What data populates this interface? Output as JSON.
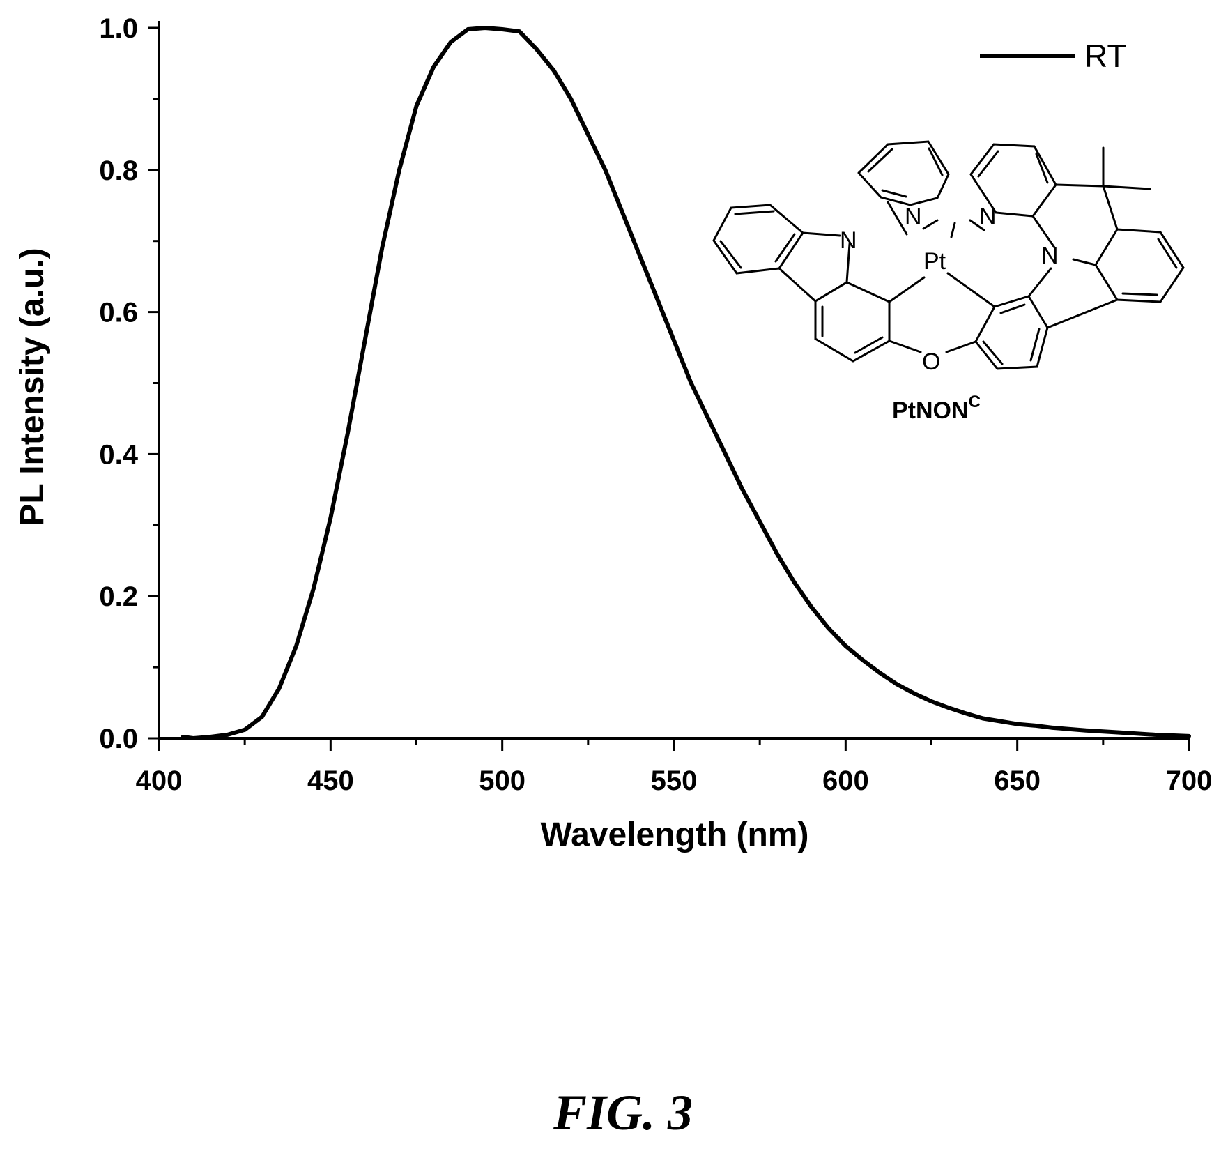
{
  "chart_data": {
    "type": "line",
    "xlabel": "Wavelength (nm)",
    "ylabel": "PL Intensity (a.u.)",
    "xlim": [
      400,
      700
    ],
    "ylim": [
      0.0,
      1.0
    ],
    "x_ticks": [
      400,
      450,
      500,
      550,
      600,
      650,
      700
    ],
    "x_tick_labels": [
      "400",
      "450",
      "500",
      "550",
      "600",
      "650",
      "700"
    ],
    "y_ticks": [
      0.0,
      0.2,
      0.4,
      0.6,
      0.8,
      1.0
    ],
    "y_tick_labels": [
      "0.0",
      "0.2",
      "0.4",
      "0.6",
      "0.8",
      "1.0"
    ],
    "grid": false,
    "legend_position": "top-right",
    "series": [
      {
        "name": "RT",
        "color": "#000000",
        "x": [
          407,
          410,
          415,
          420,
          425,
          430,
          435,
          440,
          445,
          450,
          455,
          460,
          465,
          470,
          475,
          480,
          485,
          490,
          495,
          500,
          505,
          510,
          515,
          520,
          525,
          530,
          535,
          540,
          545,
          550,
          555,
          560,
          565,
          570,
          575,
          580,
          585,
          590,
          595,
          600,
          605,
          610,
          615,
          620,
          625,
          630,
          635,
          640,
          645,
          650,
          655,
          660,
          670,
          680,
          690,
          700
        ],
        "y": [
          0.002,
          0.0,
          0.002,
          0.005,
          0.012,
          0.03,
          0.07,
          0.13,
          0.21,
          0.31,
          0.43,
          0.56,
          0.69,
          0.8,
          0.89,
          0.945,
          0.98,
          0.998,
          1.0,
          0.998,
          0.995,
          0.97,
          0.94,
          0.9,
          0.85,
          0.8,
          0.74,
          0.68,
          0.62,
          0.56,
          0.5,
          0.45,
          0.4,
          0.35,
          0.305,
          0.26,
          0.22,
          0.185,
          0.155,
          0.13,
          0.11,
          0.092,
          0.076,
          0.063,
          0.052,
          0.043,
          0.035,
          0.028,
          0.024,
          0.02,
          0.018,
          0.015,
          0.011,
          0.008,
          0.005,
          0.003
        ]
      }
    ]
  },
  "legend": {
    "label": "RT"
  },
  "molecule": {
    "name_main": "PtNON",
    "name_sup": "C",
    "atom_labels": {
      "n1": "N",
      "n2": "N",
      "n3": "N",
      "n4": "N",
      "pt": "Pt",
      "o": "O"
    }
  },
  "figure_caption": "FIG. 3"
}
